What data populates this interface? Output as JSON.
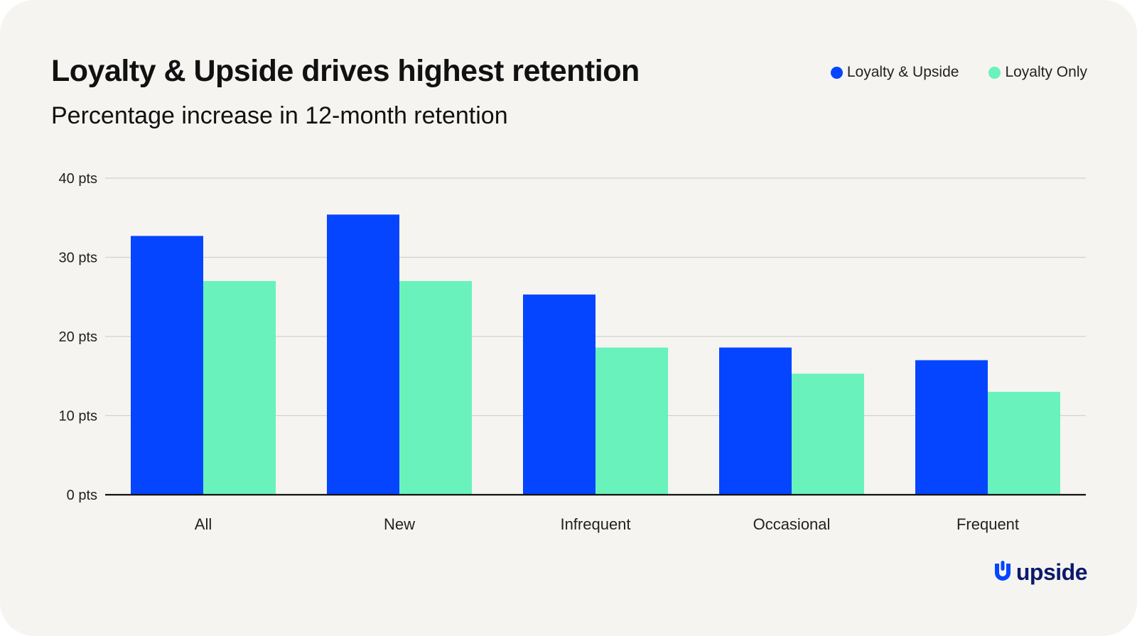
{
  "legend": {
    "loyalty_upside": "Loyalty & Upside",
    "loyalty_only": "Loyalty Only"
  },
  "colors": {
    "loyalty_upside": "#0545ff",
    "loyalty_only": "#69f2bb",
    "logo": "#0b1a6b"
  },
  "logo": {
    "text": "upside",
    "icon": "upside-u-logo-icon"
  },
  "chart_data": {
    "type": "bar",
    "title": "Loyalty & Upside drives highest retention",
    "subtitle": "Percentage increase in 12-month retention",
    "xlabel": "",
    "ylabel": "",
    "categories": [
      "All",
      "New",
      "Infrequent",
      "Occasional",
      "Frequent"
    ],
    "series": [
      {
        "name": "Loyalty & Upside",
        "values": [
          32.7,
          35.4,
          25.3,
          18.6,
          17.0
        ]
      },
      {
        "name": "Loyalty Only",
        "values": [
          27.0,
          27.0,
          18.6,
          15.3,
          13.0
        ]
      }
    ],
    "ylim": [
      0,
      40
    ],
    "yticks": [
      0,
      10,
      20,
      30,
      40
    ],
    "ytick_labels": [
      "0 pts",
      "10 pts",
      "20 pts",
      "30 pts",
      "40 pts"
    ],
    "grid": true,
    "legend_position": "top-right"
  }
}
